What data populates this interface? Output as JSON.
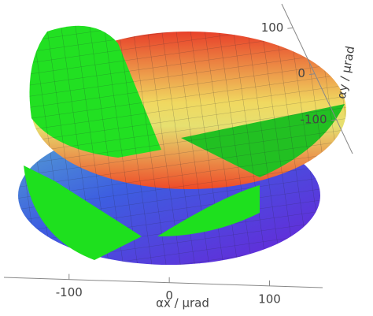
{
  "chart_data": {
    "type": "surface3d",
    "xlabel": "αx / μrad",
    "ylabel": "αy / μrad",
    "xlim": [
      -165,
      153
    ],
    "xticks": [
      -100,
      0,
      100
    ],
    "ylim": [
      -174,
      152
    ],
    "yticks": [
      -100,
      0,
      100
    ]
  }
}
